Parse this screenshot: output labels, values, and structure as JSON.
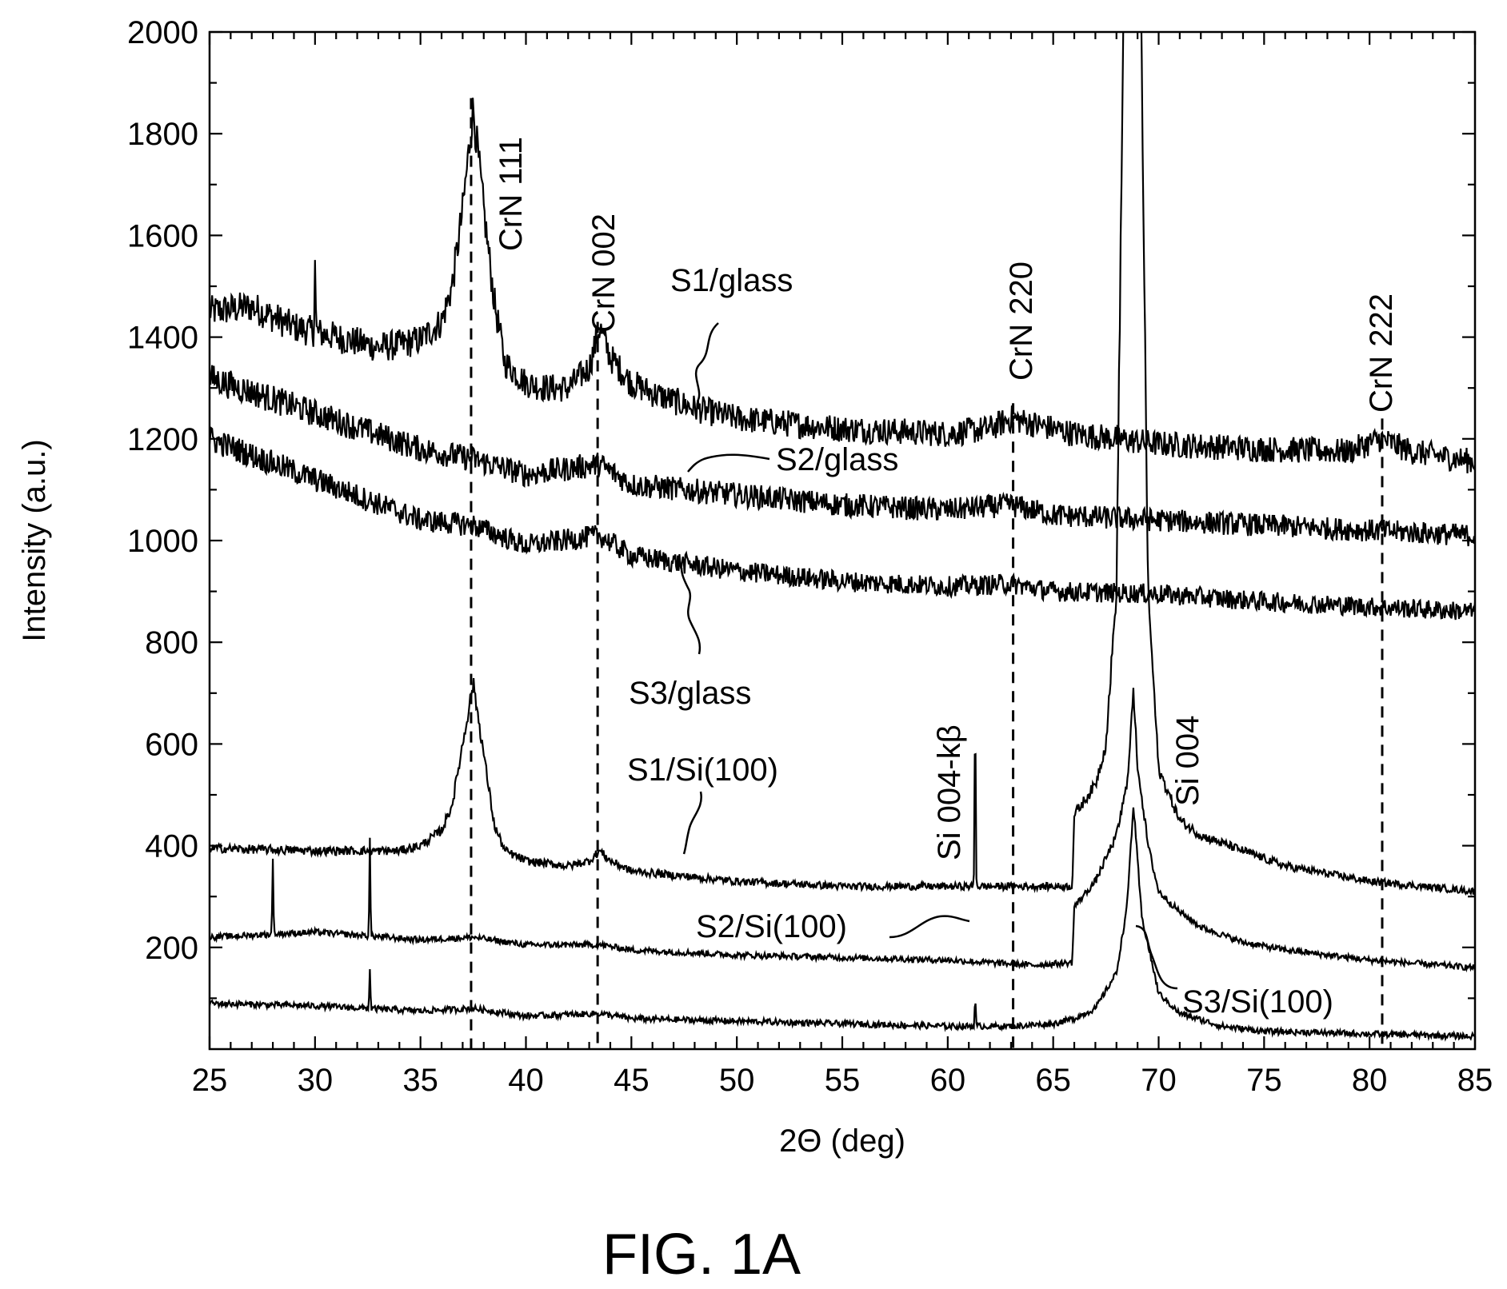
{
  "figure_caption": "FIG. 1A",
  "colors": {
    "trace": "#000000",
    "background": "#ffffff"
  },
  "chart_data": {
    "type": "line",
    "xlabel": "2Θ (deg)",
    "ylabel": "Intensity (a.u.)",
    "xlim": [
      25,
      85
    ],
    "ylim": [
      0,
      2000
    ],
    "xticks": [
      25,
      30,
      35,
      40,
      45,
      50,
      55,
      60,
      65,
      70,
      75,
      80,
      85
    ],
    "xtick_labels": [
      "25",
      "30",
      "35",
      "40",
      "45",
      "50",
      "55",
      "60",
      "65",
      "70",
      "75",
      "80",
      "85"
    ],
    "yticks": [
      200,
      400,
      600,
      800,
      1000,
      1200,
      1400,
      1600,
      1800,
      2000
    ],
    "ytick_labels": [
      "200",
      "400",
      "600",
      "800",
      "1000",
      "1200",
      "1400",
      "1600",
      "1800",
      "2000"
    ],
    "grid": false,
    "series": [
      {
        "name": "S1/glass",
        "x": [
          25,
          27,
          29,
          31,
          33,
          34,
          35,
          36,
          36.5,
          37,
          37.5,
          38,
          38.5,
          39,
          40,
          41,
          42,
          43,
          43.5,
          44,
          45,
          46,
          48,
          50,
          55,
          60,
          62,
          63,
          64,
          66,
          70,
          75,
          79,
          80.5,
          82,
          85
        ],
        "y": [
          1450,
          1460,
          1420,
          1400,
          1380,
          1385,
          1395,
          1430,
          1500,
          1650,
          1850,
          1650,
          1470,
          1350,
          1310,
          1300,
          1300,
          1340,
          1420,
          1360,
          1310,
          1290,
          1260,
          1240,
          1220,
          1210,
          1220,
          1240,
          1230,
          1210,
          1190,
          1180,
          1175,
          1200,
          1175,
          1155
        ],
        "peaks": [
          {
            "x": 30.0,
            "height": 140
          }
        ]
      },
      {
        "name": "S2/glass",
        "x": [
          25,
          30,
          35,
          37.5,
          40,
          43.5,
          45,
          50,
          55,
          60,
          63,
          65,
          70,
          75,
          80,
          85
        ],
        "y": [
          1320,
          1250,
          1180,
          1160,
          1130,
          1150,
          1110,
          1090,
          1070,
          1060,
          1070,
          1050,
          1040,
          1030,
          1020,
          1010
        ],
        "peaks": []
      },
      {
        "name": "S3/glass",
        "x": [
          25,
          30,
          35,
          37.5,
          40,
          43.5,
          45,
          50,
          55,
          60,
          63,
          65,
          70,
          75,
          80,
          85
        ],
        "y": [
          1200,
          1120,
          1040,
          1030,
          990,
          1010,
          970,
          940,
          920,
          910,
          915,
          900,
          895,
          880,
          870,
          860
        ],
        "peaks": []
      },
      {
        "name": "S1/Si(100)",
        "x": [
          25,
          30,
          34,
          35,
          36,
          36.5,
          37,
          37.5,
          38,
          38.5,
          39,
          40,
          42,
          43,
          43.5,
          44,
          45,
          50,
          55,
          60,
          64,
          65.9,
          66,
          67,
          67.5,
          68,
          68.5,
          69,
          69.5,
          70,
          71,
          72,
          74,
          76,
          80,
          85
        ],
        "y": [
          395,
          390,
          390,
          400,
          430,
          480,
          600,
          720,
          580,
          440,
          390,
          370,
          360,
          370,
          390,
          370,
          350,
          330,
          320,
          320,
          320,
          320,
          460,
          520,
          600,
          900,
          2600,
          2600,
          900,
          550,
          450,
          420,
          390,
          360,
          330,
          310
        ],
        "peaks": [
          {
            "x": 61.3,
            "height": 360
          }
        ]
      },
      {
        "name": "S2/Si(100)",
        "x": [
          25,
          30,
          35,
          37.5,
          40,
          43.5,
          45,
          50,
          55,
          60,
          62,
          64,
          65.9,
          66,
          67,
          68,
          68.5,
          68.8,
          69,
          69.5,
          70,
          71,
          72,
          74,
          76,
          80,
          85
        ],
        "y": [
          220,
          230,
          215,
          220,
          205,
          205,
          195,
          185,
          180,
          175,
          170,
          165,
          170,
          280,
          330,
          420,
          520,
          700,
          560,
          400,
          310,
          270,
          240,
          210,
          195,
          175,
          160
        ],
        "peaks": [
          {
            "x": 28.0,
            "height": 150
          },
          {
            "x": 32.6,
            "height": 190
          }
        ]
      },
      {
        "name": "S3/Si(100)",
        "x": [
          25,
          30,
          35,
          37.5,
          40,
          43.5,
          45,
          50,
          55,
          60,
          63,
          65,
          66,
          67,
          68,
          68.5,
          68.8,
          69.2,
          70,
          71,
          73,
          75,
          80,
          85
        ],
        "y": [
          90,
          85,
          75,
          80,
          65,
          70,
          60,
          55,
          50,
          45,
          45,
          50,
          60,
          80,
          150,
          280,
          480,
          260,
          110,
          70,
          45,
          35,
          30,
          25
        ],
        "peaks": [
          {
            "x": 32.6,
            "height": 80
          },
          {
            "x": 61.3,
            "height": 55
          }
        ]
      }
    ],
    "reference_lines": [
      {
        "label": "CrN 111",
        "x": 37.4
      },
      {
        "label": "CrN 002",
        "x": 43.4
      },
      {
        "label": "CrN 220",
        "x": 63.1
      },
      {
        "label": "CrN 222",
        "x": 80.6
      }
    ],
    "annotations": [
      {
        "text": "Si 004-kβ",
        "x": 61.3
      },
      {
        "text": "Si 004",
        "x": 69.5
      }
    ]
  }
}
